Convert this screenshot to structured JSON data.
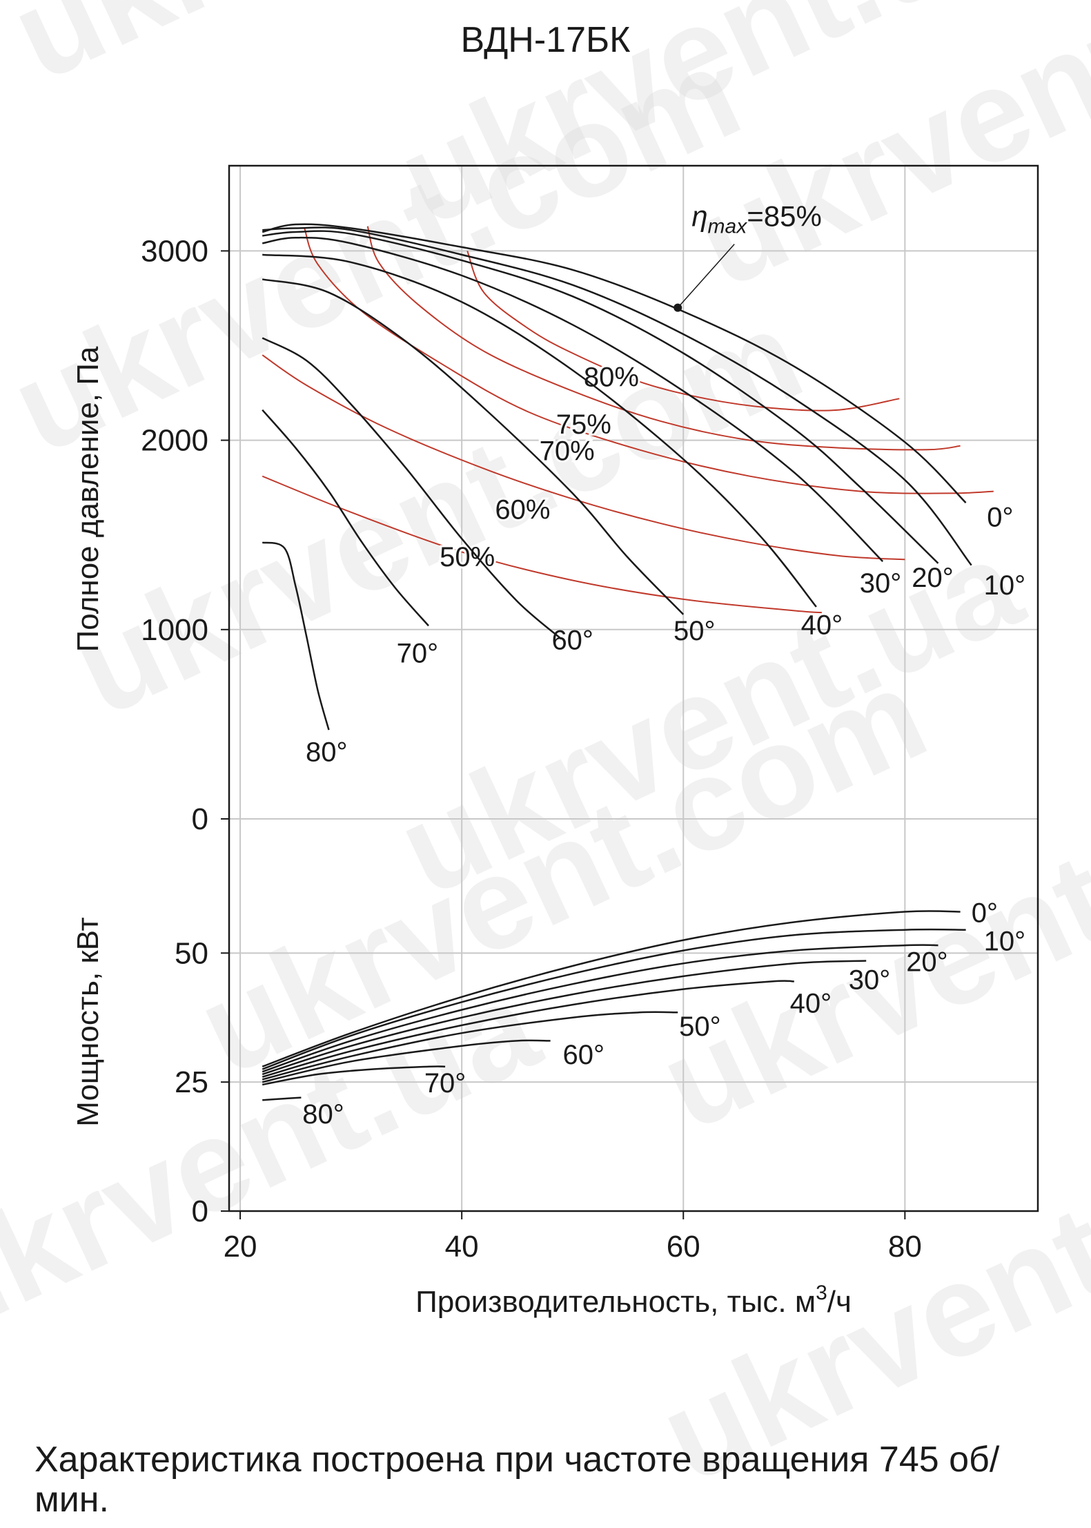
{
  "title": "ВДН-17БК",
  "watermark_text": [
    "ukrvent.ua",
    "ukrvent.com"
  ],
  "footnote": "Характеристика построена при частоте вращения 745 об/мин.",
  "chart_data": [
    {
      "type": "line",
      "panel": "pressure",
      "ylabel": "Полное давление, Па",
      "xlabel": "Производительность, тыс. м³/ч",
      "xlim": [
        19,
        92
      ],
      "ylim": [
        0,
        3450
      ],
      "xticks": [
        20,
        40,
        60,
        80
      ],
      "yticks": [
        0,
        1000,
        2000,
        3000
      ],
      "grid": true,
      "annotation": {
        "label": "η",
        "sub": "max",
        "suffix": "=85%",
        "x": 59.5,
        "y": 2700
      },
      "series": [
        {
          "name": "0°",
          "points": [
            [
              22,
              3100
            ],
            [
              25,
              3140
            ],
            [
              30,
              3120
            ],
            [
              40,
              3020
            ],
            [
              50,
              2900
            ],
            [
              60,
              2680
            ],
            [
              70,
              2390
            ],
            [
              80,
              1990
            ],
            [
              85.5,
              1670
            ]
          ],
          "label_at": [
            88.6,
            1600
          ]
        },
        {
          "name": "10°",
          "points": [
            [
              22,
              3110
            ],
            [
              25,
              3120
            ],
            [
              30,
              3110
            ],
            [
              40,
              2980
            ],
            [
              50,
              2820
            ],
            [
              60,
              2560
            ],
            [
              70,
              2220
            ],
            [
              80,
              1790
            ],
            [
              86,
              1340
            ]
          ],
          "label_at": [
            89,
            1240
          ]
        },
        {
          "name": "20°",
          "points": [
            [
              22,
              3080
            ],
            [
              25,
              3100
            ],
            [
              30,
              3090
            ],
            [
              40,
              2950
            ],
            [
              50,
              2760
            ],
            [
              60,
              2460
            ],
            [
              70,
              2060
            ],
            [
              76,
              1750
            ],
            [
              83,
              1350
            ]
          ],
          "label_at": [
            82.5,
            1280
          ]
        },
        {
          "name": "30°",
          "points": [
            [
              22,
              3040
            ],
            [
              25,
              3070
            ],
            [
              30,
              3040
            ],
            [
              40,
              2870
            ],
            [
              50,
              2610
            ],
            [
              60,
              2260
            ],
            [
              70,
              1830
            ],
            [
              78,
              1360
            ]
          ],
          "label_at": [
            77.8,
            1250
          ]
        },
        {
          "name": "40°",
          "points": [
            [
              22,
              2980
            ],
            [
              30,
              2940
            ],
            [
              40,
              2730
            ],
            [
              50,
              2370
            ],
            [
              60,
              1900
            ],
            [
              67,
              1490
            ],
            [
              72,
              1120
            ]
          ],
          "label_at": [
            72.5,
            1030
          ]
        },
        {
          "name": "50°",
          "points": [
            [
              22,
              2850
            ],
            [
              28,
              2780
            ],
            [
              35,
              2520
            ],
            [
              42,
              2170
            ],
            [
              50,
              1720
            ],
            [
              55,
              1380
            ],
            [
              60,
              1080
            ]
          ],
          "label_at": [
            61,
            1000
          ]
        },
        {
          "name": "60°",
          "points": [
            [
              22,
              2540
            ],
            [
              26,
              2420
            ],
            [
              30,
              2190
            ],
            [
              35,
              1850
            ],
            [
              40,
              1480
            ],
            [
              45,
              1150
            ],
            [
              49,
              950
            ]
          ],
          "label_at": [
            50,
            950
          ]
        },
        {
          "name": "70°",
          "points": [
            [
              22,
              2160
            ],
            [
              25,
              1960
            ],
            [
              28,
              1730
            ],
            [
              31,
              1460
            ],
            [
              34,
              1220
            ],
            [
              37,
              1020
            ]
          ],
          "label_at": [
            36,
            880
          ]
        },
        {
          "name": "80°",
          "points": [
            [
              22,
              1460
            ],
            [
              24,
              1430
            ],
            [
              25,
              1230
            ],
            [
              26,
              960
            ],
            [
              27,
              680
            ],
            [
              28,
              470
            ]
          ],
          "label_at": [
            27.8,
            360
          ]
        }
      ],
      "efficiency_curves": [
        {
          "name": "80%",
          "points": [
            [
              40.5,
              3000
            ],
            [
              42,
              2780
            ],
            [
              46,
              2590
            ],
            [
              50,
              2460
            ],
            [
              56,
              2310
            ],
            [
              62,
              2220
            ],
            [
              68,
              2170
            ],
            [
              74,
              2160
            ],
            [
              79.5,
              2220
            ]
          ],
          "label_at": [
            53.5,
            2340
          ]
        },
        {
          "name": "75%",
          "points": [
            [
              31.5,
              3130
            ],
            [
              32.5,
              2940
            ],
            [
              36,
              2720
            ],
            [
              42,
              2470
            ],
            [
              50,
              2260
            ],
            [
              58,
              2100
            ],
            [
              66,
              2000
            ],
            [
              74,
              1960
            ],
            [
              82,
              1950
            ],
            [
              85,
              1970
            ]
          ],
          "label_at": [
            51,
            2090
          ]
        },
        {
          "name": "70%",
          "points": [
            [
              25.8,
              3120
            ],
            [
              27,
              2930
            ],
            [
              31,
              2680
            ],
            [
              38,
              2410
            ],
            [
              46,
              2150
            ],
            [
              56,
              1950
            ],
            [
              66,
              1810
            ],
            [
              76,
              1730
            ],
            [
              84,
              1720
            ],
            [
              88,
              1730
            ]
          ],
          "label_at": [
            49.5,
            1950
          ]
        },
        {
          "name": "60%",
          "points": [
            [
              22,
              2450
            ],
            [
              26,
              2290
            ],
            [
              33,
              2070
            ],
            [
              42,
              1850
            ],
            [
              50,
              1690
            ],
            [
              58,
              1560
            ],
            [
              66,
              1460
            ],
            [
              74,
              1390
            ],
            [
              80,
              1370
            ]
          ],
          "label_at": [
            45.5,
            1640
          ]
        },
        {
          "name": "50%",
          "points": [
            [
              22,
              1810
            ],
            [
              30,
              1620
            ],
            [
              40,
              1410
            ],
            [
              50,
              1260
            ],
            [
              60,
              1160
            ],
            [
              70,
              1100
            ],
            [
              72.5,
              1090
            ]
          ],
          "label_at": [
            40.5,
            1390
          ]
        }
      ]
    },
    {
      "type": "line",
      "panel": "power",
      "ylabel": "Мощность, кВт",
      "xlabel": "Производительность, тыс. м³/ч",
      "xlim": [
        19,
        92
      ],
      "ylim": [
        0,
        76
      ],
      "xticks": [
        20,
        40,
        60,
        80
      ],
      "yticks": [
        0,
        25,
        50
      ],
      "grid": true,
      "series": [
        {
          "name": "0°",
          "points": [
            [
              22,
              28
            ],
            [
              30,
              34.5
            ],
            [
              40,
              41.5
            ],
            [
              50,
              47.5
            ],
            [
              60,
              52.5
            ],
            [
              70,
              56
            ],
            [
              80,
              58
            ],
            [
              85,
              58
            ]
          ],
          "label_at": [
            87.2,
            58
          ]
        },
        {
          "name": "10°",
          "points": [
            [
              22,
              27.5
            ],
            [
              30,
              34
            ],
            [
              40,
              40.5
            ],
            [
              50,
              46
            ],
            [
              60,
              50.5
            ],
            [
              70,
              53.5
            ],
            [
              80,
              54.5
            ],
            [
              85.5,
              54.5
            ]
          ],
          "label_at": [
            89,
            52.5
          ]
        },
        {
          "name": "20°",
          "points": [
            [
              22,
              27
            ],
            [
              30,
              33
            ],
            [
              40,
              39
            ],
            [
              50,
              44
            ],
            [
              60,
              48
            ],
            [
              70,
              50.5
            ],
            [
              80,
              51.5
            ],
            [
              83,
              51.5
            ]
          ],
          "label_at": [
            82,
            48.5
          ]
        },
        {
          "name": "30°",
          "points": [
            [
              22,
              26.5
            ],
            [
              30,
              32
            ],
            [
              40,
              37.5
            ],
            [
              50,
              42
            ],
            [
              60,
              45.5
            ],
            [
              70,
              48
            ],
            [
              76.5,
              48.5
            ]
          ],
          "label_at": [
            76.8,
            45
          ]
        },
        {
          "name": "40°",
          "points": [
            [
              22,
              26
            ],
            [
              30,
              31
            ],
            [
              40,
              36
            ],
            [
              50,
              40
            ],
            [
              60,
              43
            ],
            [
              68,
              44.5
            ],
            [
              70,
              44.5
            ]
          ],
          "label_at": [
            71.5,
            40.5
          ]
        },
        {
          "name": "50°",
          "points": [
            [
              22,
              25.5
            ],
            [
              30,
              30
            ],
            [
              40,
              34.5
            ],
            [
              50,
              37.5
            ],
            [
              56,
              38.5
            ],
            [
              59.5,
              38.5
            ]
          ],
          "label_at": [
            61.5,
            36
          ]
        },
        {
          "name": "60°",
          "points": [
            [
              22,
              25
            ],
            [
              30,
              29
            ],
            [
              40,
              32
            ],
            [
              45,
              33
            ],
            [
              48,
              33
            ]
          ],
          "label_at": [
            51,
            30.5
          ]
        },
        {
          "name": "70°",
          "points": [
            [
              22,
              24.5
            ],
            [
              27,
              26.5
            ],
            [
              32,
              27.5
            ],
            [
              37,
              28
            ],
            [
              38.5,
              28
            ]
          ],
          "label_at": [
            38.5,
            25
          ]
        },
        {
          "name": "80°",
          "points": [
            [
              22,
              21.5
            ],
            [
              24,
              21.8
            ],
            [
              25.5,
              22
            ]
          ],
          "label_at": [
            27.5,
            19
          ]
        }
      ]
    }
  ]
}
